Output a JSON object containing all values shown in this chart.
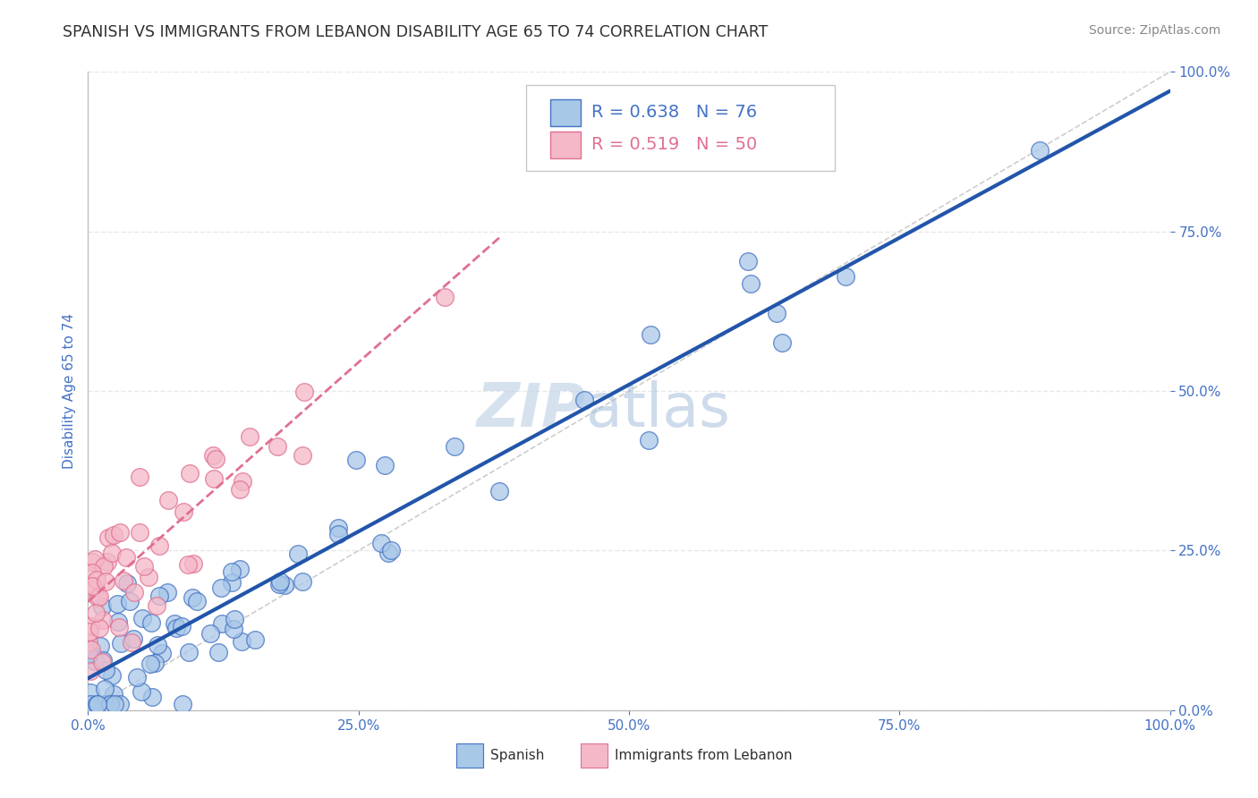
{
  "title": "SPANISH VS IMMIGRANTS FROM LEBANON DISABILITY AGE 65 TO 74 CORRELATION CHART",
  "source": "Source: ZipAtlas.com",
  "ylabel": "Disability Age 65 to 74",
  "watermark_zip": "ZIP",
  "watermark_atlas": "atlas",
  "legend_blue_r": "R = 0.638",
  "legend_blue_n": "N = 76",
  "legend_pink_r": "R = 0.519",
  "legend_pink_n": "N = 50",
  "blue_scatter_color": "#a8c8e8",
  "blue_edge_color": "#4472c4",
  "pink_scatter_color": "#f4b8c8",
  "pink_edge_color": "#e07090",
  "blue_line_color": "#2255aa",
  "pink_line_color": "#e07090",
  "ref_line_color": "#c8c8c8",
  "title_color": "#303030",
  "axis_tick_color": "#4472c4",
  "legend_blue_color": "#4472c4",
  "legend_pink_color": "#e07090",
  "background_color": "#ffffff",
  "grid_color": "#e8e8e8",
  "blue_reg_slope": 0.92,
  "blue_reg_intercept": 0.05,
  "pink_reg_slope": 1.5,
  "pink_reg_intercept": 0.17
}
